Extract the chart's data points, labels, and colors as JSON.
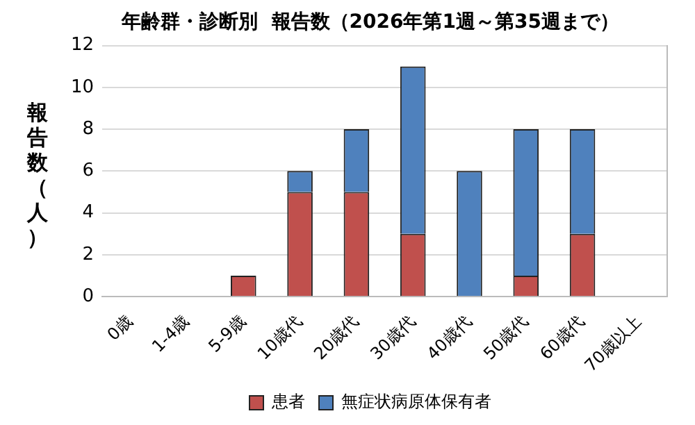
{
  "chart_data": {
    "type": "bar",
    "title": "年齢群・診断別  報告数（2026年第1週～第35週まで）",
    "ylabel": "報告数（人）",
    "categories": [
      "0歳",
      "1-4歳",
      "5-9歳",
      "10歳代",
      "20歳代",
      "30歳代",
      "40歳代",
      "50歳代",
      "60歳代",
      "70歳以上"
    ],
    "series": [
      {
        "name": "患者",
        "color": "#c0504d",
        "values": [
          0,
          0,
          1,
          5,
          5,
          3,
          0,
          1,
          3,
          0
        ]
      },
      {
        "name": "無症状病原体保有者",
        "color": "#4f81bd",
        "values": [
          0,
          0,
          0,
          1,
          3,
          8,
          6,
          7,
          5,
          0
        ]
      }
    ],
    "stacked": true,
    "ylim": [
      0,
      12
    ],
    "yticks": [
      0,
      2,
      4,
      6,
      8,
      10,
      12
    ],
    "grid": "y",
    "legend": "bottom"
  }
}
